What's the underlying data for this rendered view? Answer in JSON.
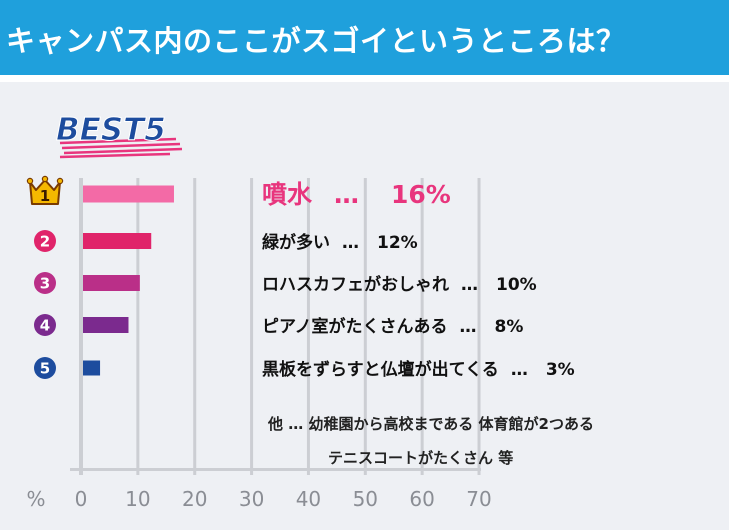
{
  "header": {
    "title": "キャンパス内のここがスゴイというところは？"
  },
  "badge": {
    "text": "BEST5"
  },
  "chart_data": {
    "type": "bar",
    "orientation": "horizontal",
    "categories": [
      "噴水",
      "緑が多い",
      "ロハスカフェがおしゃれ",
      "ピアノ室がたくさんある",
      "黒板をずらすと仏壇が出てくる"
    ],
    "values": [
      16,
      12,
      10,
      8,
      3
    ],
    "value_labels": [
      "16%",
      "12%",
      "10%",
      "8%",
      "3%"
    ],
    "label_separator": "…",
    "ranks": [
      "1",
      "2",
      "3",
      "4",
      "5"
    ],
    "xlim": [
      0,
      70
    ],
    "x_ticks": [
      "0",
      "10",
      "20",
      "30",
      "40",
      "50",
      "60",
      "70"
    ],
    "x_unit": "%",
    "grid": true,
    "colors": [
      "#f36aa6",
      "#e0246a",
      "#ba2f88",
      "#7b2a8e",
      "#1d4c9e"
    ],
    "rank_colors": [
      "#f5b800",
      "#e0246a",
      "#ba2f88",
      "#7b2a8e",
      "#1d4c9e"
    ],
    "highlight_color": "#e8357d",
    "note_lines": [
      "他 … 幼稚園から高校まである 体育館が2つある",
      "テニスコートがたくさん 等"
    ]
  }
}
